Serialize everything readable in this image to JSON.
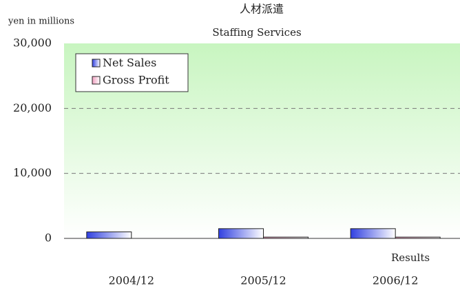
{
  "chart_data": {
    "type": "bar",
    "title": "人材派遣",
    "subtitle": "Staffing Services",
    "y_axis_label": "yen in millions",
    "annotation": "Results",
    "categories": [
      "2004/12",
      "2005/12",
      "2006/12"
    ],
    "series": [
      {
        "name": "Net Sales",
        "color": "#3040e0",
        "values": [
          1000,
          1500,
          1500
        ]
      },
      {
        "name": "Gross Profit",
        "color": "#f0a0c0",
        "values": [
          null,
          200,
          200
        ]
      }
    ],
    "ylim": [
      0,
      30000
    ],
    "yticks": [
      0,
      {
        "value": 10000,
        "label": "10,000"
      },
      {
        "value": 20000,
        "label": "20,000"
      },
      {
        "value": 30000,
        "label": "30,000"
      }
    ],
    "grid": true,
    "legend": "upper left"
  }
}
